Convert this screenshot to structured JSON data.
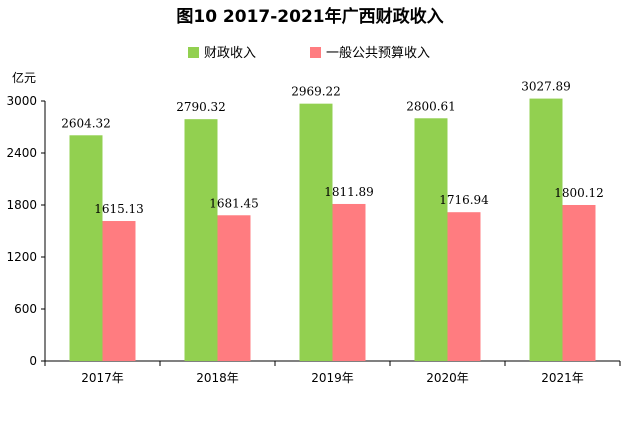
{
  "chart_data": {
    "type": "bar",
    "title": "图10 2017-2021年广西财政收入",
    "unit_label": "亿元",
    "categories": [
      "2017年",
      "2018年",
      "2019年",
      "2020年",
      "2021年"
    ],
    "series": [
      {
        "name": "财政收入",
        "color": "#92d050",
        "values": [
          2604.32,
          2790.32,
          2969.22,
          2800.61,
          3027.89
        ],
        "labels": [
          "2604.32",
          "2790.32",
          "2969.22",
          "2800.61",
          "3027.89"
        ]
      },
      {
        "name": "一般公共预算收入",
        "color": "#ff7c80",
        "values": [
          1615.13,
          1681.45,
          1811.89,
          1716.94,
          1800.12
        ],
        "labels": [
          "1615.13",
          "1681.45",
          "1811.89",
          "1716.94",
          "1800.12"
        ]
      }
    ],
    "ylim": [
      0,
      3000
    ],
    "yticks": [
      "0",
      "600",
      "1200",
      "1800",
      "2400",
      "3000"
    ],
    "grid": false,
    "legend_position": "top"
  }
}
